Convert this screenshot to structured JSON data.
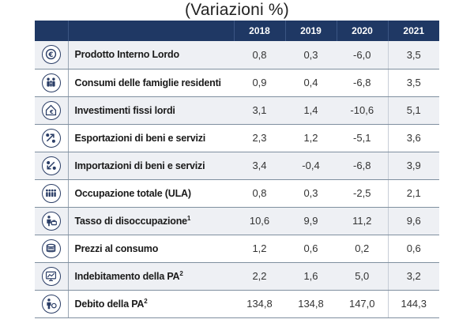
{
  "title": "(Variazioni %)",
  "chart_data": {
    "type": "table",
    "title": "(Variazioni %)",
    "columns": [
      "2018",
      "2019",
      "2020",
      "2021"
    ],
    "rows": [
      {
        "label": "Prodotto Interno Lordo",
        "sup": "",
        "icon": "euro-coin-icon",
        "values": [
          "0,8",
          "0,3",
          "-6,0",
          "3,5"
        ]
      },
      {
        "label": "Consumi delle famiglie residenti",
        "sup": "",
        "icon": "family-icon",
        "values": [
          "0,9",
          "0,4",
          "-6,8",
          "3,5"
        ]
      },
      {
        "label": "Investimenti fissi lordi",
        "sup": "",
        "icon": "investment-house-icon",
        "values": [
          "3,1",
          "1,4",
          "-10,6",
          "5,1"
        ]
      },
      {
        "label": "Esportazioni di beni e servizi",
        "sup": "",
        "icon": "export-arrows-icon",
        "values": [
          "2,3",
          "1,2",
          "-5,1",
          "3,6"
        ]
      },
      {
        "label": "Importazioni di beni e servizi",
        "sup": "",
        "icon": "import-arrows-icon",
        "values": [
          "3,4",
          "-0,4",
          "-6,8",
          "3,9"
        ]
      },
      {
        "label": "Occupazione totale (ULA)",
        "sup": "",
        "icon": "workers-icon",
        "values": [
          "0,8",
          "0,3",
          "-2,5",
          "2,1"
        ]
      },
      {
        "label": "Tasso di disoccupazione",
        "sup": "1",
        "icon": "unemployment-icon",
        "values": [
          "10,6",
          "9,9",
          "11,2",
          "9,6"
        ]
      },
      {
        "label": "Prezzi al consumo",
        "sup": "",
        "icon": "coins-stack-icon",
        "values": [
          "1,2",
          "0,6",
          "0,2",
          "0,6"
        ]
      },
      {
        "label": "Indebitamento della PA",
        "sup": "2",
        "icon": "deficit-chart-icon",
        "values": [
          "2,2",
          "1,6",
          "5,0",
          "3,2"
        ]
      },
      {
        "label": "Debito della PA",
        "sup": "2",
        "icon": "debt-person-icon",
        "values": [
          "134,8",
          "134,8",
          "147,0",
          "144,3"
        ]
      }
    ]
  }
}
